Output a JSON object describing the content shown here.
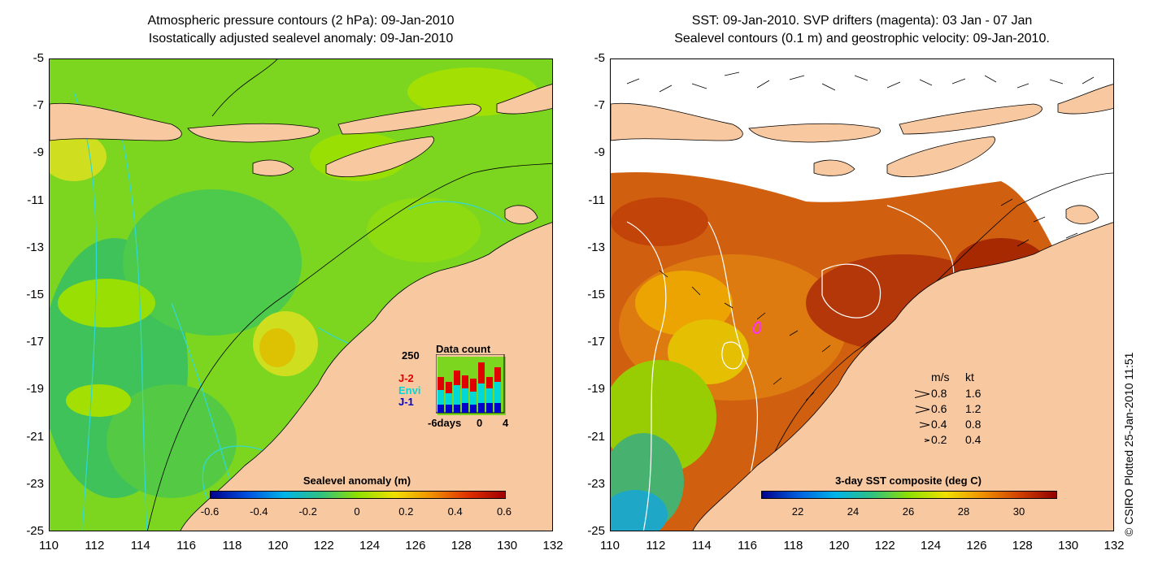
{
  "left_panel": {
    "title_line1": "Atmospheric pressure contours (2 hPa): 09-Jan-2010",
    "title_line2": "Isostatically adjusted sealevel anomaly: 09-Jan-2010",
    "colorbar": {
      "title": "Sealevel anomaly (m)",
      "ticks": [
        "-0.6",
        "-0.4",
        "-0.2",
        "0",
        "0.2",
        "0.4",
        "0.6"
      ],
      "colors": [
        "#00008b",
        "#0050e0",
        "#00b4e8",
        "#30c080",
        "#8ee000",
        "#f0e000",
        "#f09000",
        "#e03000",
        "#a00000"
      ]
    },
    "inset": {
      "title": "Data count",
      "ymax_label": "250",
      "xlabels": [
        "-6days",
        "0",
        "4"
      ],
      "series": [
        "J-2",
        "Envi",
        "J-1"
      ],
      "series_colors": [
        "#e00000",
        "#00d8d8",
        "#0000cc"
      ]
    }
  },
  "right_panel": {
    "title_line1": "SST: 09-Jan-2010. SVP drifters (magenta): 03 Jan - 07 Jan",
    "title_line2": "Sealevel contours (0.1 m) and geostrophic velocity: 09-Jan-2010.",
    "colorbar": {
      "title": "3-day SST composite (deg C)",
      "ticks": [
        "22",
        "24",
        "26",
        "28",
        "30"
      ],
      "colors": [
        "#00008b",
        "#0060e0",
        "#00b4e8",
        "#30c080",
        "#8ee000",
        "#f0e000",
        "#f09000",
        "#d04000",
        "#900000"
      ]
    },
    "speed_legend": {
      "header_ms": "m/s",
      "header_kt": "kt",
      "rows": [
        {
          "ms": "0.8",
          "kt": "1.6"
        },
        {
          "ms": "0.6",
          "kt": "1.2"
        },
        {
          "ms": "0.4",
          "kt": "0.8"
        },
        {
          "ms": "0.2",
          "kt": "0.4"
        }
      ]
    }
  },
  "axes": {
    "lat_ticks": [
      "-5",
      "-7",
      "-9",
      "-11",
      "-13",
      "-15",
      "-17",
      "-19",
      "-21",
      "-23",
      "-25"
    ],
    "lon_ticks": [
      "110",
      "112",
      "114",
      "116",
      "118",
      "120",
      "122",
      "124",
      "126",
      "128",
      "130",
      "132"
    ]
  },
  "copyright": "© CSIRO Plotted 25-Jan-2010 11:51",
  "colors": {
    "land": "#f8c8a0",
    "sea_green": "#7cd620",
    "contour_cyan": "#30d8d8",
    "sst_warm": "#d06010"
  }
}
